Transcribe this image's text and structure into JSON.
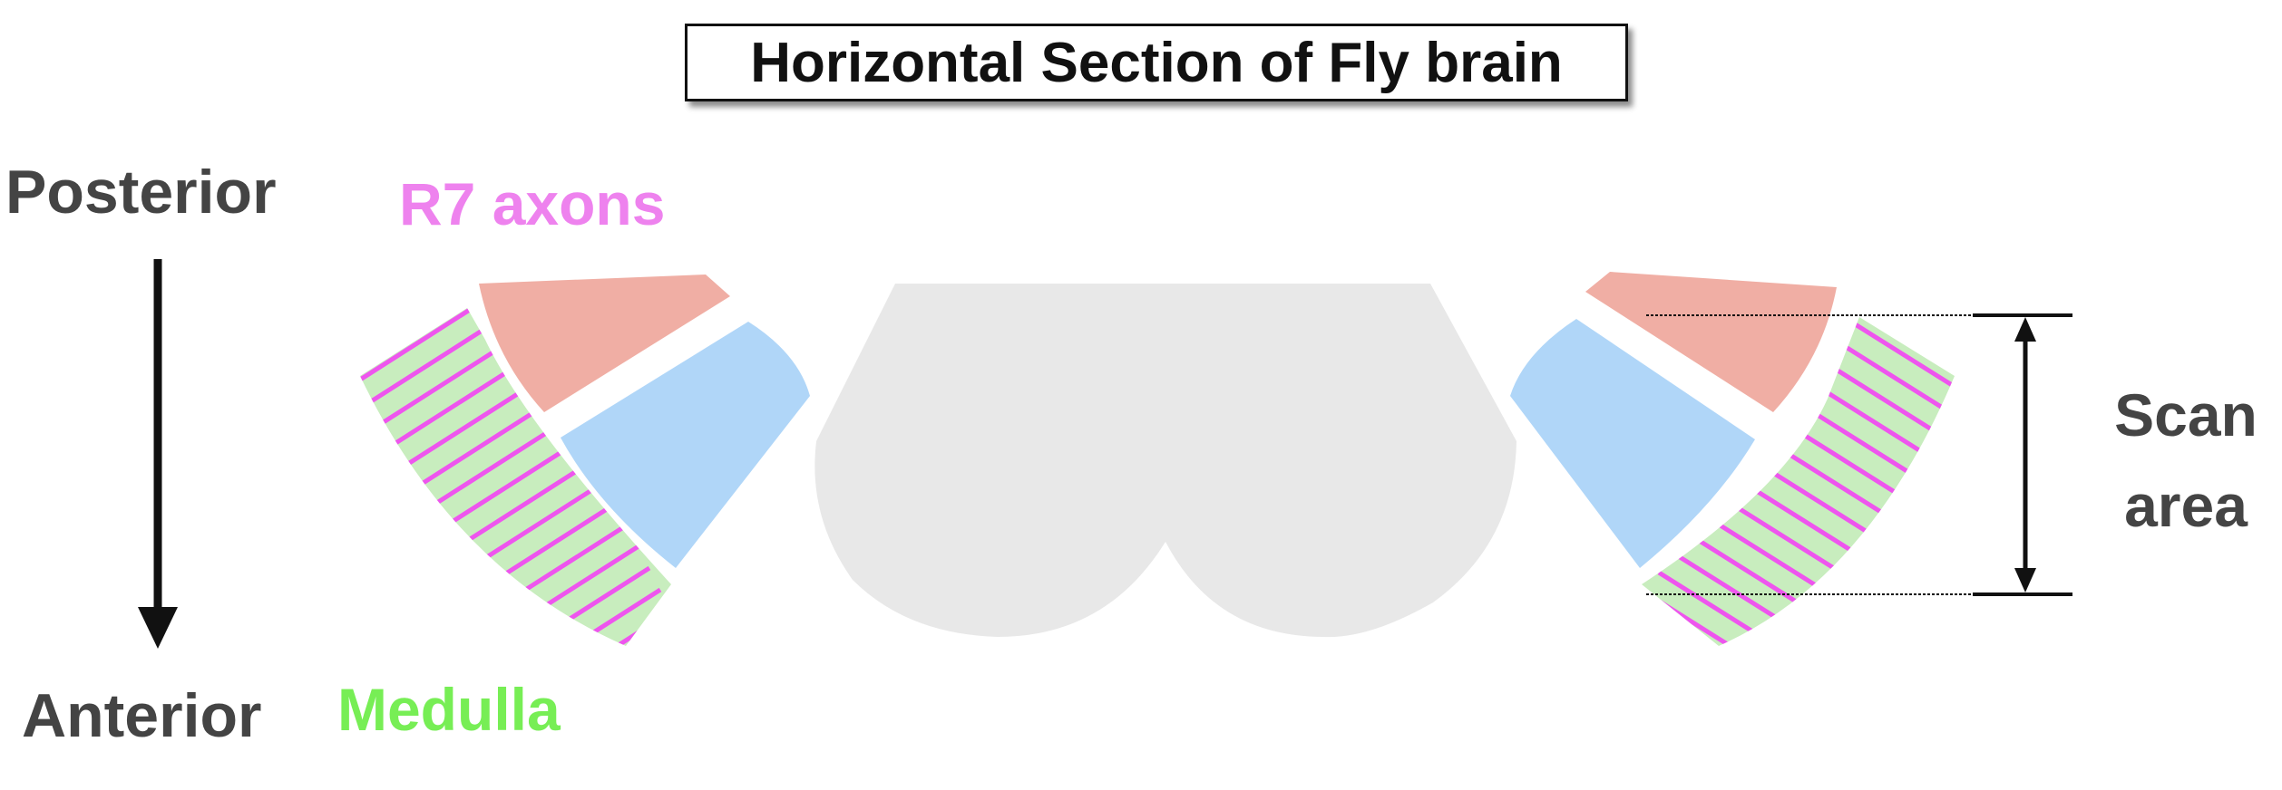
{
  "title": "Horizontal Section of Fly brain",
  "axis": {
    "top_label": "Posterior",
    "bottom_label": "Anterior"
  },
  "legend": {
    "r7_label": "R7 axons",
    "medulla_label": "Medulla"
  },
  "scan": {
    "line1": "Scan",
    "line2": "area"
  },
  "colors": {
    "r7": "#ee82ee",
    "medulla": "#77ee55",
    "medulla_fill": "#c8edbe",
    "lamina_fill": "#f0aea4",
    "lobula_fill": "#b0d6f8",
    "central_brain": "#e8e8e8",
    "text_dark": "#444444",
    "arrow": "#111111"
  }
}
